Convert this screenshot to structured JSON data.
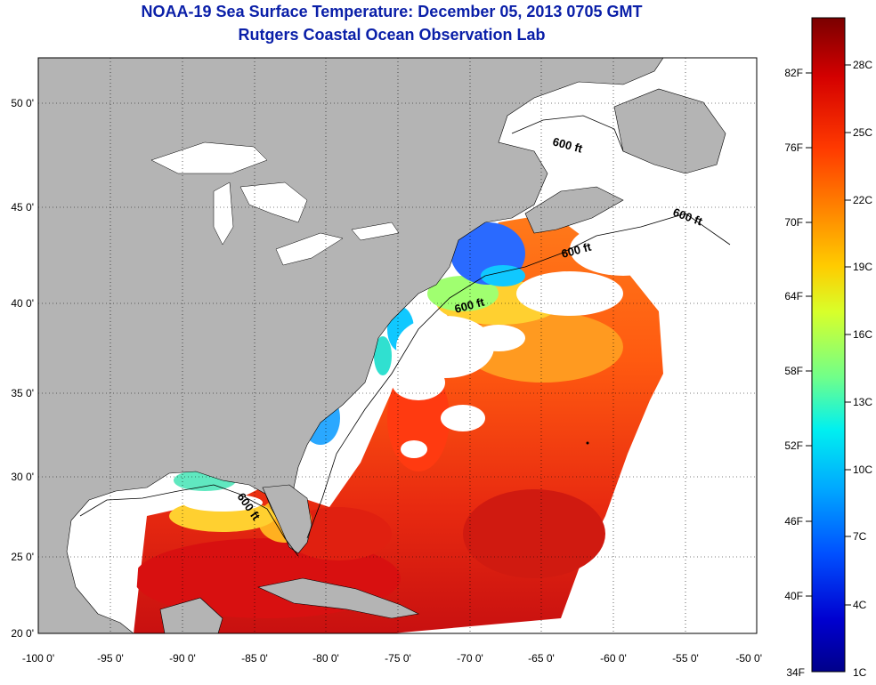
{
  "header": {
    "title": "NOAA-19 Sea Surface Temperature:  December 05, 2013 0705 GMT",
    "subtitle": "Rutgers Coastal Ocean Observation Lab"
  },
  "map": {
    "lat_range": [
      20,
      52.5
    ],
    "lon_range": [
      -100,
      -50
    ],
    "lat_ticks": [
      "50 0'",
      "45 0'",
      "40 0'",
      "35 0'",
      "30 0'",
      "25 0'",
      "20 0'"
    ],
    "lon_ticks": [
      "-100 0'",
      "-95 0'",
      "-90 0'",
      "-85 0'",
      "-80 0'",
      "-75 0'",
      "-70 0'",
      "-65 0'",
      "-60 0'",
      "-55 0'",
      "-50 0'"
    ],
    "contour_labels": [
      "600 ft",
      "600 ft",
      "600 ft",
      "600 ft",
      "600 ft"
    ],
    "colors": {
      "land": "#b4b4b4",
      "cloud_or_nodata": "#ffffff",
      "title": "#0a1fa8"
    }
  },
  "colorbar": {
    "fahrenheit_labels": [
      "82F",
      "76F",
      "70F",
      "64F",
      "58F",
      "52F",
      "46F",
      "40F",
      "34F"
    ],
    "celsius_labels": [
      "28C",
      "25C",
      "22C",
      "19C",
      "16C",
      "13C",
      "10C",
      "7C",
      "4C",
      "1C"
    ],
    "colormap": [
      "#7a0000",
      "#d40000",
      "#ff3a00",
      "#ff8a00",
      "#ffcc00",
      "#d8ff2a",
      "#70ff8a",
      "#00f0f0",
      "#00a8ff",
      "#0050ff",
      "#0000d0",
      "#00008a"
    ]
  }
}
